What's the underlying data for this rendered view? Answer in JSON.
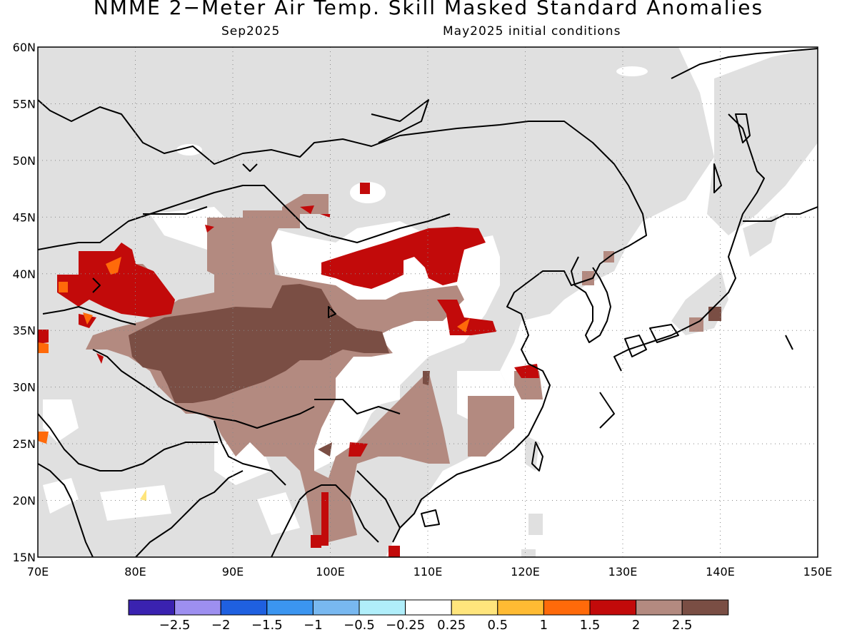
{
  "title": "NMME 2−Meter Air Temp. Skill Masked Standard Anomalies",
  "subtitle_left": "Sep2025",
  "subtitle_right": "May2025 initial conditions",
  "lat_labels": [
    "60N",
    "55N",
    "50N",
    "45N",
    "40N",
    "35N",
    "30N",
    "25N",
    "20N",
    "15N"
  ],
  "lon_labels": [
    "70E",
    "80E",
    "90E",
    "100E",
    "110E",
    "120E",
    "130E",
    "140E",
    "150E"
  ],
  "colorbar": {
    "colors": [
      "#3a22b0",
      "#9d8ff0",
      "#1f60e0",
      "#3b95f0",
      "#78b8f0",
      "#b0eefa",
      "#ffffff",
      "#ffe57c",
      "#ffbb33",
      "#ff6a0a",
      "#c20a0a",
      "#b38a80",
      "#7a4e44"
    ],
    "labels": [
      "−2.5",
      "−2",
      "−1.5",
      "−1",
      "−0.5",
      "−0.25",
      "0.25",
      "0.5",
      "1",
      "1.5",
      "2",
      "2.5"
    ]
  },
  "map": {
    "lon_range": [
      70,
      150
    ],
    "lat_range": [
      15,
      60
    ],
    "grid": "dotted",
    "masked_color": "#e0e0e0",
    "ocean_color": "#ffffff"
  }
}
